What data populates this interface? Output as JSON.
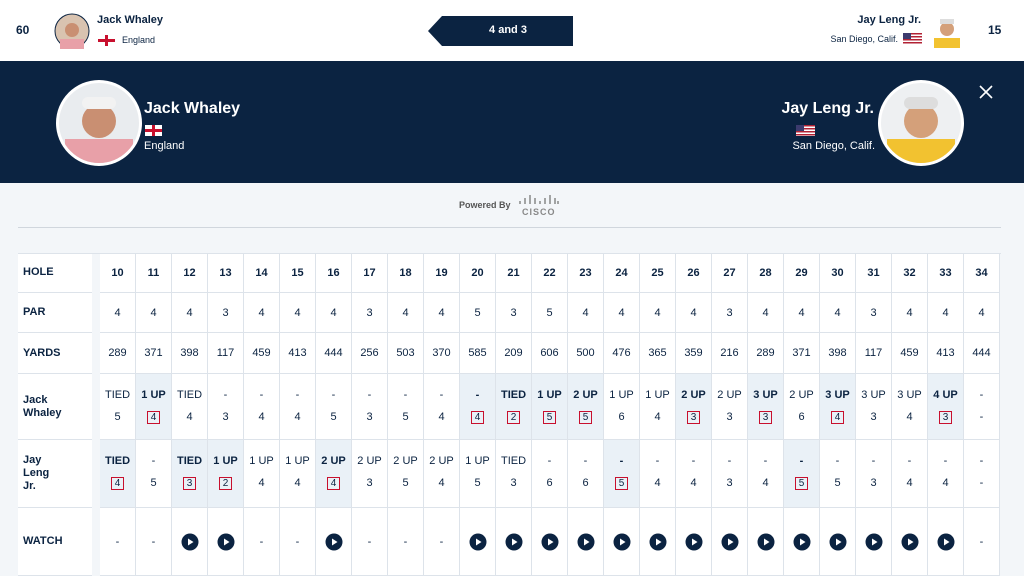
{
  "top_bar": {
    "left": {
      "seed": 60,
      "name": "Jack Whaley",
      "country": "England"
    },
    "result": "4 and 3",
    "right": {
      "name": "Jay Leng Jr.",
      "country": "San Diego, Calif.",
      "seed": 15
    }
  },
  "header": {
    "left": {
      "name": "Jack Whaley",
      "country": "England"
    },
    "right": {
      "name": "Jay Leng Jr.",
      "country": "San Diego, Calif."
    }
  },
  "sponsor": {
    "label": "Powered By",
    "brand": "CISCO"
  },
  "table": {
    "row_labels": [
      "HOLE",
      "PAR",
      "YARDS",
      "Jack Whaley",
      "Jay Leng Jr.",
      "WATCH"
    ],
    "holes": [
      10,
      11,
      12,
      13,
      14,
      15,
      16,
      17,
      18,
      19,
      20,
      21,
      22,
      23,
      24,
      25,
      26,
      27,
      28,
      29,
      30,
      31,
      32,
      33,
      34
    ],
    "par": [
      4,
      4,
      4,
      3,
      4,
      4,
      4,
      3,
      4,
      4,
      5,
      3,
      5,
      4,
      4,
      4,
      4,
      3,
      4,
      4,
      4,
      3,
      4,
      4,
      4
    ],
    "yards": [
      289,
      371,
      398,
      117,
      459,
      413,
      444,
      256,
      503,
      370,
      585,
      209,
      606,
      500,
      476,
      365,
      359,
      216,
      289,
      371,
      398,
      117,
      459,
      413,
      444
    ],
    "players": [
      {
        "status": [
          "TIED",
          "1 UP",
          "TIED",
          "-",
          "-",
          "-",
          "-",
          "-",
          "-",
          "-",
          "-",
          "TIED",
          "1 UP",
          "2 UP",
          "1 UP",
          "1 UP",
          "2 UP",
          "2 UP",
          "3 UP",
          "2 UP",
          "3 UP",
          "3 UP",
          "3 UP",
          "4 UP",
          "-"
        ],
        "score": [
          5,
          4,
          4,
          3,
          4,
          4,
          5,
          3,
          5,
          4,
          4,
          2,
          5,
          5,
          6,
          4,
          3,
          3,
          3,
          6,
          4,
          3,
          4,
          3,
          "-"
        ],
        "won": [
          false,
          true,
          false,
          false,
          false,
          false,
          false,
          false,
          false,
          false,
          true,
          true,
          true,
          true,
          false,
          false,
          true,
          false,
          true,
          false,
          true,
          false,
          false,
          true,
          false
        ]
      },
      {
        "status": [
          "TIED",
          "-",
          "TIED",
          "1 UP",
          "1 UP",
          "1 UP",
          "2 UP",
          "2 UP",
          "2 UP",
          "2 UP",
          "1 UP",
          "TIED",
          "-",
          "-",
          "-",
          "-",
          "-",
          "-",
          "-",
          "-",
          "-",
          "-",
          "-",
          "-",
          "-"
        ],
        "score": [
          4,
          5,
          3,
          2,
          4,
          4,
          4,
          3,
          5,
          4,
          5,
          3,
          6,
          6,
          5,
          4,
          4,
          3,
          4,
          5,
          5,
          3,
          4,
          4,
          "-"
        ],
        "won": [
          true,
          false,
          true,
          true,
          false,
          false,
          true,
          false,
          false,
          false,
          false,
          false,
          false,
          false,
          true,
          false,
          false,
          false,
          false,
          true,
          false,
          false,
          false,
          false,
          false
        ]
      }
    ],
    "watch": [
      "-",
      "-",
      true,
      true,
      "-",
      "-",
      true,
      "-",
      "-",
      "-",
      true,
      true,
      true,
      true,
      true,
      true,
      true,
      true,
      true,
      true,
      true,
      true,
      true,
      true,
      "-"
    ]
  }
}
